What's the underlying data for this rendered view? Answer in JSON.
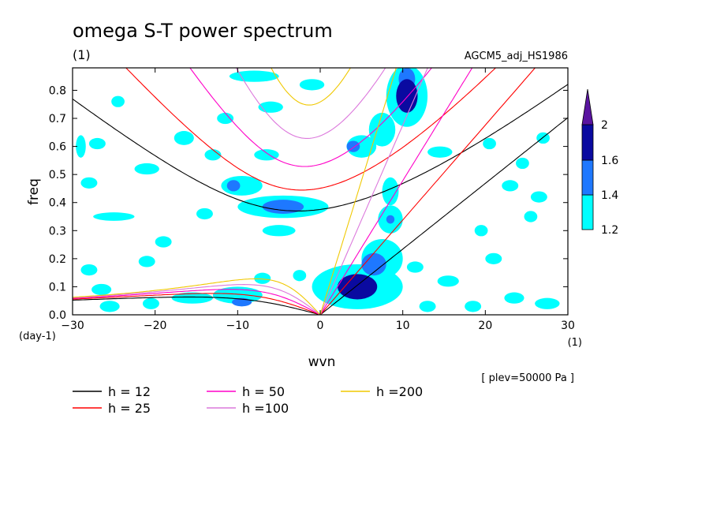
{
  "chart_data": {
    "type": "heatmap",
    "title": "omega S-T power spectrum",
    "subtitle": "(1)",
    "run_label": "AGCM5_adj_HS1986",
    "xlabel": "wvn",
    "ylabel": "freq",
    "x_unit": "(1)",
    "y_unit": "(day-1)",
    "xlim": [
      -30,
      30
    ],
    "ylim": [
      0,
      0.88
    ],
    "xticks": [
      "-30",
      "-20",
      "-10",
      "0",
      "10",
      "20",
      "30"
    ],
    "yticks": [
      "0.0",
      "0.1",
      "0.2",
      "0.3",
      "0.4",
      "0.5",
      "0.6",
      "0.7",
      "0.8"
    ],
    "note": "[ plev=50000 Pa ]",
    "colorbar": {
      "levels": [
        "1.2",
        "1.4",
        "1.6",
        "2"
      ],
      "colors": [
        "#00ffff",
        "#1e78ff",
        "#0a0aa0",
        "#5a14a0"
      ]
    },
    "curves": [
      {
        "label": "h = 12",
        "h": 12,
        "color": "#000000"
      },
      {
        "label": "h = 25",
        "h": 25,
        "color": "#ff0000"
      },
      {
        "label": "h = 50",
        "h": 50,
        "color": "#ff00c8"
      },
      {
        "label": "h =100",
        "h": 100,
        "color": "#dc78dc"
      },
      {
        "label": "h =200",
        "h": 200,
        "color": "#f0c800"
      }
    ],
    "blobs": [
      {
        "x": 4.5,
        "y": 0.1,
        "rx": 2.4,
        "ry": 0.045,
        "level": 3
      },
      {
        "x": 6.5,
        "y": 0.18,
        "rx": 1.5,
        "ry": 0.04,
        "level": 2
      },
      {
        "x": 10.5,
        "y": 0.78,
        "rx": 1.3,
        "ry": 0.06,
        "level": 3
      },
      {
        "x": 10.5,
        "y": 0.84,
        "rx": 1.0,
        "ry": 0.04,
        "level": 2
      },
      {
        "x": -4.5,
        "y": 0.385,
        "rx": 2.5,
        "ry": 0.025,
        "level": 2
      },
      {
        "x": 4.0,
        "y": 0.6,
        "rx": 0.8,
        "ry": 0.02,
        "level": 2
      },
      {
        "x": -9.5,
        "y": 0.045,
        "rx": 1.2,
        "ry": 0.015,
        "level": 2
      },
      {
        "x": -10.5,
        "y": 0.46,
        "rx": 0.8,
        "ry": 0.02,
        "level": 2
      },
      {
        "x": 8.5,
        "y": 0.34,
        "rx": 0.5,
        "ry": 0.015,
        "level": 2
      },
      {
        "x": 4.5,
        "y": 0.1,
        "rx": 5.5,
        "ry": 0.08,
        "level": 1
      },
      {
        "x": 7.5,
        "y": 0.2,
        "rx": 2.5,
        "ry": 0.07,
        "level": 1
      },
      {
        "x": 8.5,
        "y": 0.34,
        "rx": 1.5,
        "ry": 0.05,
        "level": 1
      },
      {
        "x": 10.5,
        "y": 0.78,
        "rx": 2.5,
        "ry": 0.11,
        "level": 1
      },
      {
        "x": 7.5,
        "y": 0.66,
        "rx": 1.6,
        "ry": 0.06,
        "level": 1
      },
      {
        "x": 5.0,
        "y": 0.6,
        "rx": 1.8,
        "ry": 0.04,
        "level": 1
      },
      {
        "x": 8.5,
        "y": 0.44,
        "rx": 1.0,
        "ry": 0.05,
        "level": 1
      },
      {
        "x": -4.5,
        "y": 0.385,
        "rx": 5.5,
        "ry": 0.04,
        "level": 1
      },
      {
        "x": -9.5,
        "y": 0.46,
        "rx": 2.5,
        "ry": 0.035,
        "level": 1
      },
      {
        "x": -5.0,
        "y": 0.3,
        "rx": 2.0,
        "ry": 0.02,
        "level": 1
      },
      {
        "x": -8.0,
        "y": 0.85,
        "rx": 3.0,
        "ry": 0.02,
        "level": 1
      },
      {
        "x": -16.5,
        "y": 0.63,
        "rx": 1.2,
        "ry": 0.025,
        "level": 1
      },
      {
        "x": -24.5,
        "y": 0.76,
        "rx": 0.8,
        "ry": 0.02,
        "level": 1
      },
      {
        "x": -27.0,
        "y": 0.61,
        "rx": 1.0,
        "ry": 0.02,
        "level": 1
      },
      {
        "x": -25.0,
        "y": 0.35,
        "rx": 2.5,
        "ry": 0.015,
        "level": 1
      },
      {
        "x": -28.0,
        "y": 0.47,
        "rx": 1.0,
        "ry": 0.02,
        "level": 1
      },
      {
        "x": -29.0,
        "y": 0.6,
        "rx": 0.6,
        "ry": 0.04,
        "level": 1
      },
      {
        "x": -21.0,
        "y": 0.52,
        "rx": 1.5,
        "ry": 0.02,
        "level": 1
      },
      {
        "x": -6.5,
        "y": 0.57,
        "rx": 1.5,
        "ry": 0.02,
        "level": 1
      },
      {
        "x": -6.0,
        "y": 0.74,
        "rx": 1.5,
        "ry": 0.02,
        "level": 1
      },
      {
        "x": -1.0,
        "y": 0.82,
        "rx": 1.5,
        "ry": 0.02,
        "level": 1
      },
      {
        "x": -11.5,
        "y": 0.7,
        "rx": 1.0,
        "ry": 0.02,
        "level": 1
      },
      {
        "x": -13.0,
        "y": 0.57,
        "rx": 1.0,
        "ry": 0.02,
        "level": 1
      },
      {
        "x": -15.5,
        "y": 0.06,
        "rx": 2.5,
        "ry": 0.02,
        "level": 1
      },
      {
        "x": -25.5,
        "y": 0.03,
        "rx": 1.2,
        "ry": 0.02,
        "level": 1
      },
      {
        "x": -20.5,
        "y": 0.04,
        "rx": 1.0,
        "ry": 0.02,
        "level": 1
      },
      {
        "x": -10.0,
        "y": 0.07,
        "rx": 3.0,
        "ry": 0.03,
        "level": 1
      },
      {
        "x": -28.0,
        "y": 0.16,
        "rx": 1.0,
        "ry": 0.02,
        "level": 1
      },
      {
        "x": -21.0,
        "y": 0.19,
        "rx": 1.0,
        "ry": 0.02,
        "level": 1
      },
      {
        "x": -19.0,
        "y": 0.26,
        "rx": 1.0,
        "ry": 0.02,
        "level": 1
      },
      {
        "x": -26.5,
        "y": 0.09,
        "rx": 1.2,
        "ry": 0.02,
        "level": 1
      },
      {
        "x": 14.5,
        "y": 0.58,
        "rx": 1.5,
        "ry": 0.02,
        "level": 1
      },
      {
        "x": 20.5,
        "y": 0.61,
        "rx": 0.8,
        "ry": 0.02,
        "level": 1
      },
      {
        "x": 15.5,
        "y": 0.12,
        "rx": 1.3,
        "ry": 0.02,
        "level": 1
      },
      {
        "x": 27.5,
        "y": 0.04,
        "rx": 1.5,
        "ry": 0.02,
        "level": 1
      },
      {
        "x": 23.5,
        "y": 0.06,
        "rx": 1.2,
        "ry": 0.02,
        "level": 1
      },
      {
        "x": 13.0,
        "y": 0.03,
        "rx": 1.0,
        "ry": 0.02,
        "level": 1
      },
      {
        "x": 18.5,
        "y": 0.03,
        "rx": 1.0,
        "ry": 0.02,
        "level": 1
      },
      {
        "x": 23.0,
        "y": 0.46,
        "rx": 1.0,
        "ry": 0.02,
        "level": 1
      },
      {
        "x": 26.5,
        "y": 0.42,
        "rx": 1.0,
        "ry": 0.02,
        "level": 1
      },
      {
        "x": 19.5,
        "y": 0.3,
        "rx": 0.8,
        "ry": 0.02,
        "level": 1
      },
      {
        "x": 25.5,
        "y": 0.35,
        "rx": 0.8,
        "ry": 0.02,
        "level": 1
      },
      {
        "x": 24.5,
        "y": 0.54,
        "rx": 0.8,
        "ry": 0.02,
        "level": 1
      },
      {
        "x": 27.0,
        "y": 0.63,
        "rx": 0.8,
        "ry": 0.02,
        "level": 1
      },
      {
        "x": -2.5,
        "y": 0.14,
        "rx": 0.8,
        "ry": 0.02,
        "level": 1
      },
      {
        "x": -7.0,
        "y": 0.13,
        "rx": 1.0,
        "ry": 0.02,
        "level": 1
      },
      {
        "x": 11.5,
        "y": 0.17,
        "rx": 1.0,
        "ry": 0.02,
        "level": 1
      },
      {
        "x": 21.0,
        "y": 0.2,
        "rx": 1.0,
        "ry": 0.02,
        "level": 1
      },
      {
        "x": -14.0,
        "y": 0.36,
        "rx": 1.0,
        "ry": 0.02,
        "level": 1
      }
    ]
  }
}
